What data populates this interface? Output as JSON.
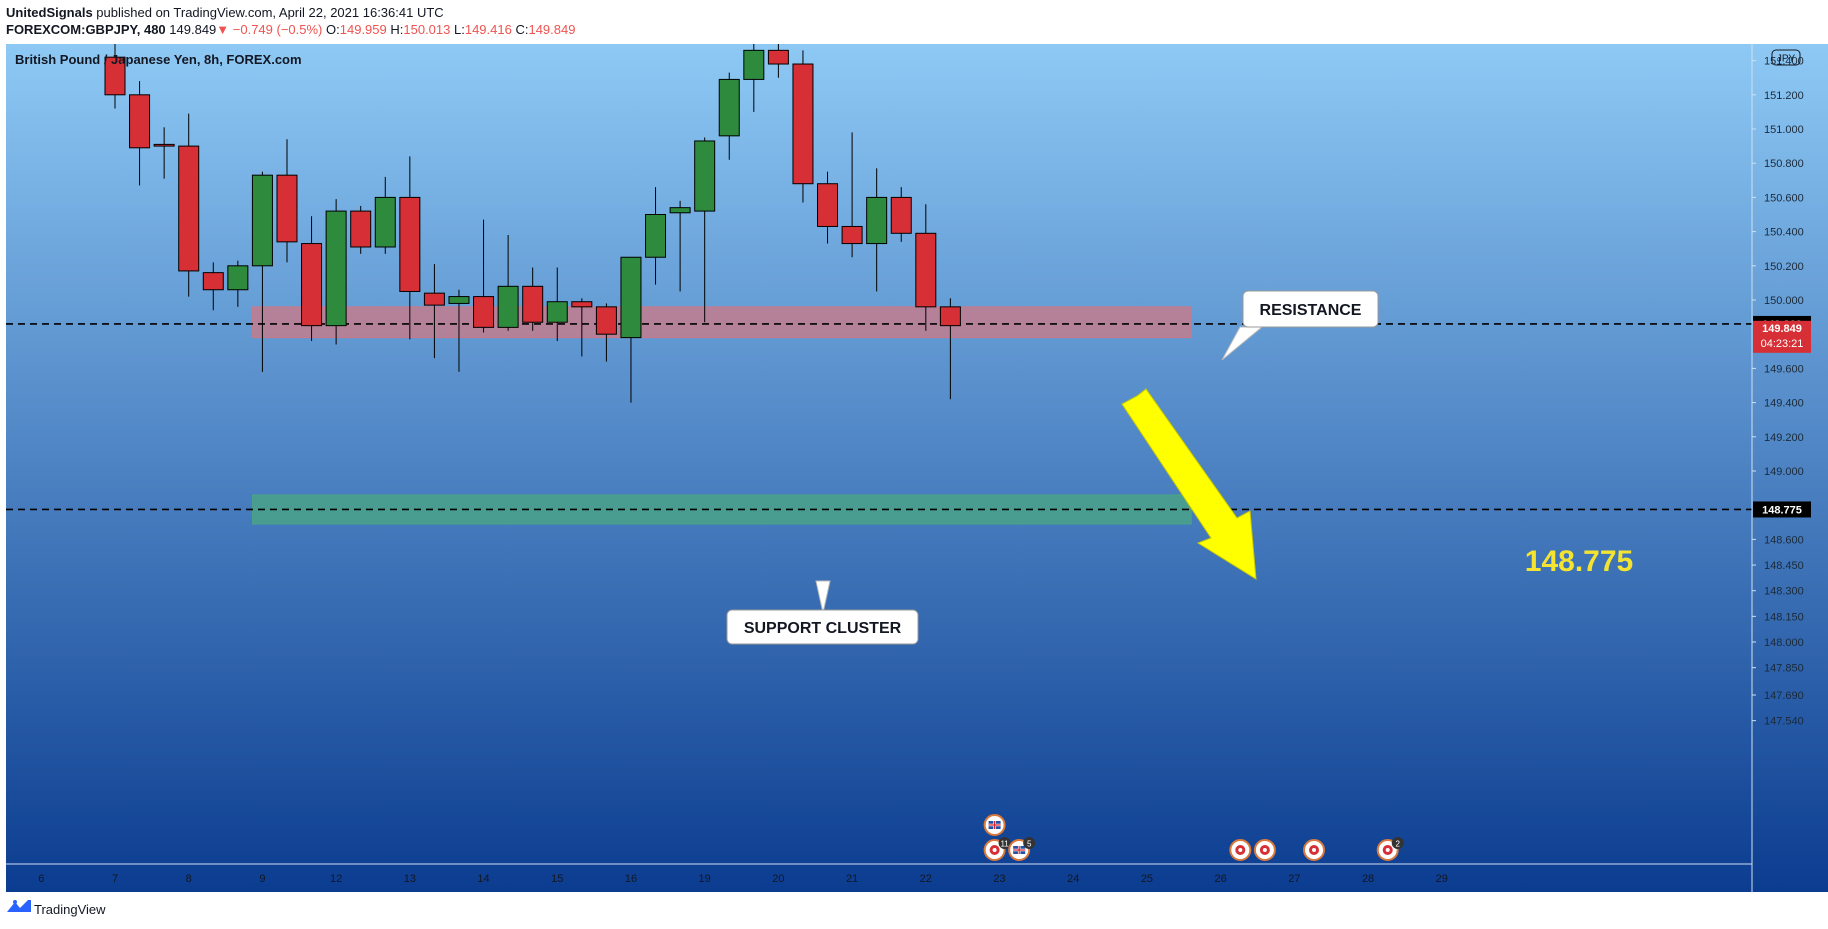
{
  "header": {
    "publisher": "UnitedSignals",
    "published_text": " published on TradingView.com, April 22, 2021 16:36:41 UTC",
    "symbol": "FOREXCOM:GBPJPY, 480",
    "last": "149.849",
    "change": "▼ −0.749 (−0.5%)",
    "o_label": "O:",
    "o_value": "149.959",
    "h_label": "H:",
    "h_value": "150.013",
    "l_label": "L:",
    "l_value": "149.416",
    "c_label": "C:",
    "c_value": "149.849"
  },
  "footer": {
    "brand": "TradingView"
  },
  "colors": {
    "bg_top": "#8ec9f5",
    "bg_bottom": "#0b3c90",
    "up": "#2e8b3d",
    "down": "#d62f35",
    "resistance_zone": "#c87a8a",
    "support_zone": "#4aa585",
    "arrow": "#ffff00",
    "target_text": "#f5e332"
  },
  "chart_data": {
    "type": "candlestick",
    "title": "British Pound / Japanese Yen, 8h, FOREX.com",
    "currency_badge": "JPY",
    "ylim": [
      147.41,
      151.68
    ],
    "y_ticks": [
      "151.400",
      "151.200",
      "151.000",
      "150.800",
      "150.600",
      "150.400",
      "150.200",
      "150.000",
      "149.600",
      "149.400",
      "149.200",
      "149.000",
      "148.600",
      "148.450",
      "148.300",
      "148.150",
      "148.000",
      "147.850",
      "147.690",
      "147.540"
    ],
    "x_ticks": [
      "6",
      "7",
      "8",
      "9",
      "12",
      "13",
      "14",
      "15",
      "16",
      "19",
      "20",
      "21",
      "22",
      "23",
      "24",
      "25",
      "26",
      "27",
      "28",
      "29"
    ],
    "x_tick_slots": [
      -3,
      0,
      3,
      6,
      9,
      12,
      15,
      18,
      21,
      24,
      27,
      30,
      33,
      36,
      39,
      42,
      45,
      48,
      51,
      54
    ],
    "candles": [
      {
        "o": 151.42,
        "h": 151.7,
        "l": 151.12,
        "c": 151.2
      },
      {
        "o": 151.2,
        "h": 151.28,
        "l": 150.67,
        "c": 150.89
      },
      {
        "o": 150.91,
        "h": 151.01,
        "l": 150.71,
        "c": 150.9
      },
      {
        "o": 150.9,
        "h": 151.09,
        "l": 150.02,
        "c": 150.17
      },
      {
        "o": 150.16,
        "h": 150.22,
        "l": 149.94,
        "c": 150.06
      },
      {
        "o": 150.06,
        "h": 150.23,
        "l": 149.96,
        "c": 150.2
      },
      {
        "o": 150.2,
        "h": 150.75,
        "l": 149.58,
        "c": 150.73
      },
      {
        "o": 150.73,
        "h": 150.94,
        "l": 150.22,
        "c": 150.34
      },
      {
        "o": 150.33,
        "h": 150.49,
        "l": 149.76,
        "c": 149.85
      },
      {
        "o": 149.85,
        "h": 150.59,
        "l": 149.74,
        "c": 150.52
      },
      {
        "o": 150.52,
        "h": 150.55,
        "l": 150.27,
        "c": 150.31
      },
      {
        "o": 150.31,
        "h": 150.72,
        "l": 150.27,
        "c": 150.6
      },
      {
        "o": 150.6,
        "h": 150.84,
        "l": 149.77,
        "c": 150.05
      },
      {
        "o": 150.04,
        "h": 150.21,
        "l": 149.66,
        "c": 149.97
      },
      {
        "o": 149.98,
        "h": 150.06,
        "l": 149.58,
        "c": 150.02
      },
      {
        "o": 150.02,
        "h": 150.47,
        "l": 149.81,
        "c": 149.84
      },
      {
        "o": 149.84,
        "h": 150.38,
        "l": 149.82,
        "c": 150.08
      },
      {
        "o": 150.08,
        "h": 150.19,
        "l": 149.82,
        "c": 149.87
      },
      {
        "o": 149.87,
        "h": 150.19,
        "l": 149.76,
        "c": 149.99
      },
      {
        "o": 149.99,
        "h": 150.01,
        "l": 149.67,
        "c": 149.96
      },
      {
        "o": 149.96,
        "h": 149.98,
        "l": 149.64,
        "c": 149.8
      },
      {
        "o": 149.78,
        "h": 150.25,
        "l": 149.4,
        "c": 150.25
      },
      {
        "o": 150.25,
        "h": 150.66,
        "l": 150.09,
        "c": 150.5
      },
      {
        "o": 150.51,
        "h": 150.58,
        "l": 150.05,
        "c": 150.54
      },
      {
        "o": 150.52,
        "h": 150.95,
        "l": 149.87,
        "c": 150.93
      },
      {
        "o": 150.96,
        "h": 151.33,
        "l": 150.82,
        "c": 151.29
      },
      {
        "o": 151.29,
        "h": 151.7,
        "l": 151.1,
        "c": 151.46
      },
      {
        "o": 151.46,
        "h": 151.68,
        "l": 151.3,
        "c": 151.38
      },
      {
        "o": 151.38,
        "h": 151.46,
        "l": 150.57,
        "c": 150.68
      },
      {
        "o": 150.68,
        "h": 150.75,
        "l": 150.33,
        "c": 150.43
      },
      {
        "o": 150.43,
        "h": 150.98,
        "l": 150.25,
        "c": 150.33
      },
      {
        "o": 150.33,
        "h": 150.77,
        "l": 150.05,
        "c": 150.6
      },
      {
        "o": 150.6,
        "h": 150.66,
        "l": 150.34,
        "c": 150.39
      },
      {
        "o": 150.39,
        "h": 150.56,
        "l": 149.82,
        "c": 149.96
      },
      {
        "o": 149.96,
        "h": 150.01,
        "l": 149.42,
        "c": 149.85
      }
    ],
    "price_lines": [
      {
        "value": 149.86,
        "label": "149.860",
        "badge_bg": "#000000",
        "badge_fg": "#ffffff"
      },
      {
        "value": 148.775,
        "label": "148.775",
        "badge_bg": "#000000",
        "badge_fg": "#ffffff"
      }
    ],
    "last_price_badge": {
      "value": 149.849,
      "label": "149.849",
      "countdown": "04:23:21"
    },
    "zones": [
      {
        "name": "resistance",
        "from": 149.78,
        "to": 149.96,
        "slot_start": 5.6,
        "slot_end": 43.8
      },
      {
        "name": "support",
        "from": 148.69,
        "to": 148.86,
        "slot_start": 5.6,
        "slot_end": 43.8
      }
    ],
    "annotations": {
      "resistance_label": "RESISTANCE",
      "support_label": "SUPPORT CLUSTER",
      "target_label": "148.775"
    },
    "event_markers": [
      {
        "slot": 35.8,
        "flag": "uk",
        "count": ""
      },
      {
        "slot": 35.8,
        "flag": "target",
        "count": "11"
      },
      {
        "slot": 36.8,
        "flag": "uk",
        "count": "5"
      },
      {
        "slot": 45.8,
        "flag": "target",
        "count": ""
      },
      {
        "slot": 46.8,
        "flag": "target",
        "count": ""
      },
      {
        "slot": 48.8,
        "flag": "target",
        "count": ""
      },
      {
        "slot": 51.8,
        "flag": "target",
        "count": "2"
      }
    ]
  }
}
